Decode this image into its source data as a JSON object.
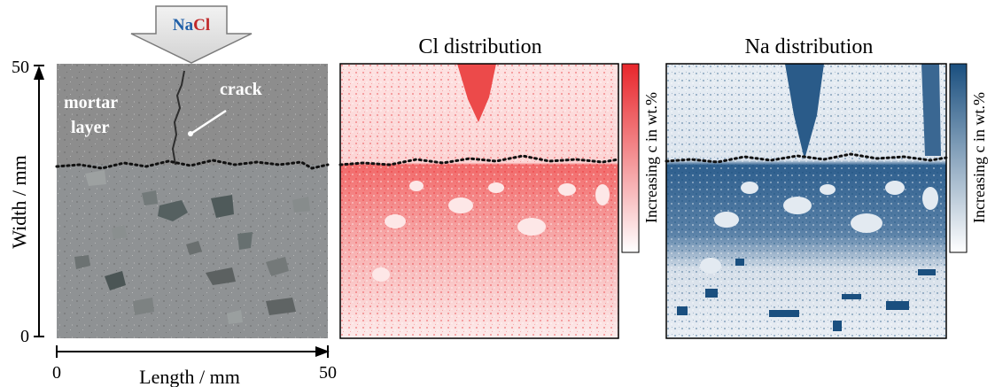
{
  "arrow_label": {
    "na": "Na",
    "cl": "Cl"
  },
  "photo": {
    "mortar_label_line1": "mortar",
    "mortar_label_line2": "layer",
    "crack_label": "crack",
    "y_axis": {
      "label": "Width / mm",
      "tick_top": "50",
      "tick_bottom": "0"
    },
    "x_axis": {
      "label": "Length / mm",
      "tick_left": "0",
      "tick_right": "50"
    }
  },
  "cl_map": {
    "title": "Cl distribution",
    "colorbar_label": "Increasing  c in wt.%"
  },
  "na_map": {
    "title": "Na distribution",
    "colorbar_label": "Increasing  c in wt.%"
  },
  "colors": {
    "na_text": "#1f5fa8",
    "cl_text": "#c0282a",
    "cl_map": "#e8262b",
    "na_map": "#1a4f7f"
  }
}
